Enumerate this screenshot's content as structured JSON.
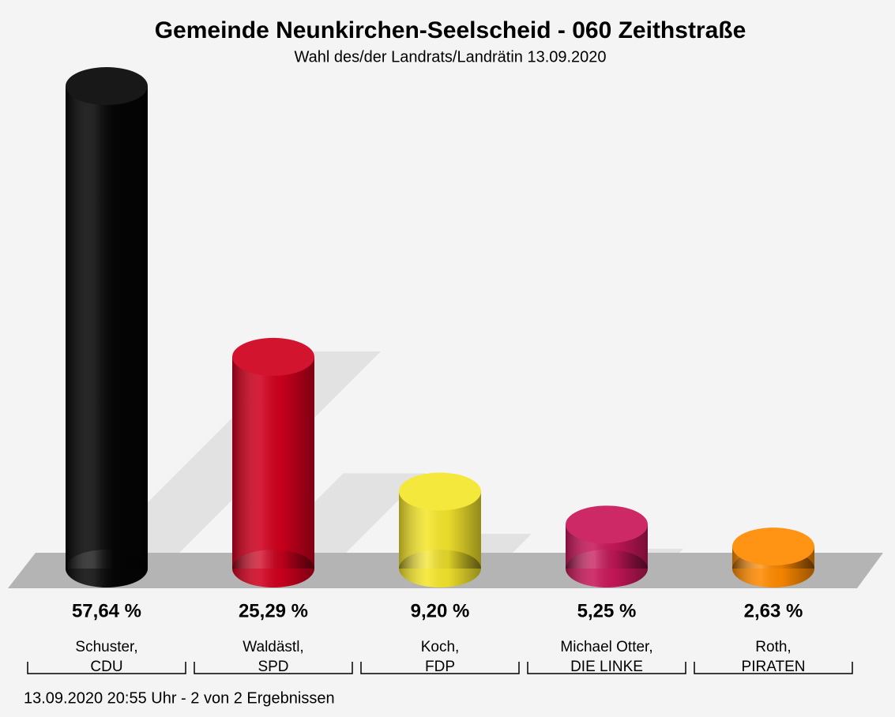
{
  "chart_data": {
    "type": "bar",
    "title": "Gemeinde Neunkirchen-Seelscheid - 060 Zeithstraße",
    "subtitle": "Wahl des/der Landrats/Landrätin 13.09.2020",
    "categories": [
      "Schuster,",
      "Waldästl,",
      "Koch,",
      "Michael Otter,",
      "Roth,"
    ],
    "parties": [
      "CDU",
      "SPD",
      "FDP",
      "DIE LINKE",
      "PIRATEN"
    ],
    "values": [
      57.64,
      25.29,
      9.2,
      5.25,
      2.63
    ],
    "value_labels": [
      "57,64 %",
      "25,29 %",
      "9,20 %",
      "5,25 %",
      "2,63 %"
    ],
    "colors": [
      "#050505",
      "#d0001e",
      "#f5e62c",
      "#c8175a",
      "#ff8a00"
    ],
    "footer": "13.09.2020 20:55 Uhr - 2 von 2 Ergebnissen"
  }
}
